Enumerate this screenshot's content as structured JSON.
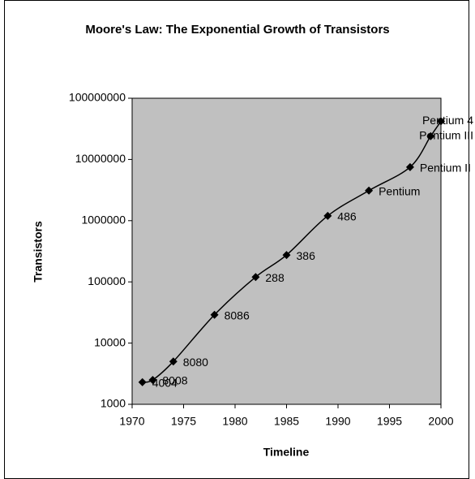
{
  "chart_data": {
    "type": "line",
    "title": "Moore's Law: The Exponential Growth of Transistors",
    "x_label": "Timeline",
    "y_label": "Transistors",
    "x": [
      1971,
      1972,
      1974,
      1978,
      1982,
      1985,
      1989,
      1993,
      1997,
      1999,
      2000
    ],
    "series": [
      {
        "name": "Transistors",
        "color": "#000000",
        "values": [
          2300,
          2500,
          5000,
          29000,
          120000,
          275000,
          1200000,
          3100000,
          7500000,
          24000000,
          42000000
        ],
        "point_labels": [
          "4004",
          "8008",
          "8080",
          "8086",
          "288",
          "386",
          "486",
          "Pentium",
          "Pentium II",
          "Pentium III",
          "Pentium 4"
        ]
      }
    ],
    "xlim": [
      1970,
      2000
    ],
    "xticks": [
      1970,
      1975,
      1980,
      1985,
      1990,
      1995,
      2000
    ],
    "ylim": [
      1000,
      100000000
    ],
    "yticks": [
      1000,
      10000,
      100000,
      1000000,
      10000000,
      100000000
    ],
    "y_log": true,
    "plot_background": "#c0c0c0"
  }
}
